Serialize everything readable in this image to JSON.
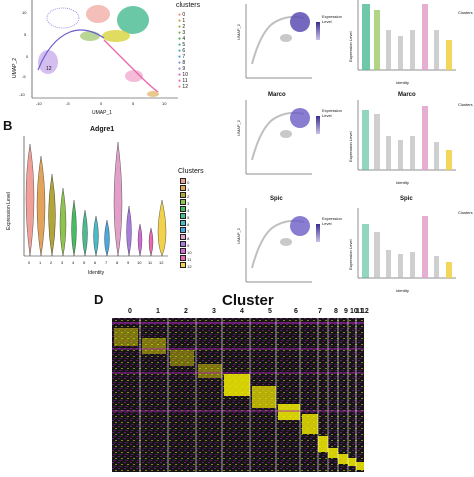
{
  "panel_letters": {
    "B": "B",
    "D": "D"
  },
  "umap_main": {
    "x_label": "UMAP_1",
    "y_label": "UMAP_2",
    "x_ticks": [
      "-10",
      "-5",
      "0",
      "5",
      "10"
    ],
    "y_ticks": [
      "10",
      "5",
      "0",
      "-5",
      "-10"
    ],
    "legend_title": "clusters",
    "clusters": [
      "0",
      "1",
      "2",
      "3",
      "4",
      "5",
      "6",
      "7",
      "8",
      "9",
      "10",
      "11",
      "12"
    ],
    "point_labels": [
      "12"
    ]
  },
  "colors": {
    "c0": "#e98a7e",
    "c1": "#d89a2f",
    "c2": "#b2a53a",
    "c3": "#7fb53c",
    "c4": "#3ab54a",
    "c5": "#39b58a",
    "c6": "#38b3c0",
    "c7": "#33a3d9",
    "c8": "#7a8ee0",
    "c9": "#a77de0",
    "c10": "#d56ad6",
    "c11": "#e96aae",
    "c12": "#f08a8a",
    "expr_high": "#3b2e8c",
    "expr_low": "#d8d3f0",
    "heat_low": "#a526b0",
    "heat_mid": "#111111",
    "heat_high": "#f5f000"
  },
  "violin_b": {
    "title": "Adgre1",
    "y_label": "Expression Level",
    "x_label": "Identity",
    "x_ticks": [
      "0",
      "1",
      "2",
      "3",
      "4",
      "5",
      "6",
      "7",
      "8",
      "9",
      "10",
      "11",
      "12"
    ],
    "legend_title": "Clusters",
    "legend_items": [
      "0",
      "1",
      "2",
      "3",
      "4",
      "5",
      "6",
      "7",
      "8",
      "9",
      "10",
      "11",
      "12"
    ]
  },
  "feature_rows": [
    {
      "title": "",
      "umap_x": "UMAP_1",
      "umap_y": "UMAP_2",
      "legend": "Expression Level",
      "violin_y": "Expression Level",
      "violin_x": "Identity",
      "violin_legend": "Clusters"
    },
    {
      "title": "Marco",
      "umap_x": "UMAP_1",
      "umap_y": "UMAP_2",
      "legend": "Expression Level",
      "violin_y": "Expression Level",
      "violin_x": "Identity",
      "violin_legend": "Clusters"
    },
    {
      "title": "Spic",
      "umap_x": "UMAP_1",
      "umap_y": "UMAP_2",
      "legend": "Expression Level",
      "violin_y": "Expression Level",
      "violin_x": "Identity",
      "violin_legend": "Clusters"
    }
  ],
  "heatmap_d": {
    "title": "Cluster",
    "columns": [
      "0",
      "1",
      "2",
      "3",
      "4",
      "5",
      "6",
      "7",
      "8",
      "9",
      "10",
      "11",
      "12"
    ]
  }
}
